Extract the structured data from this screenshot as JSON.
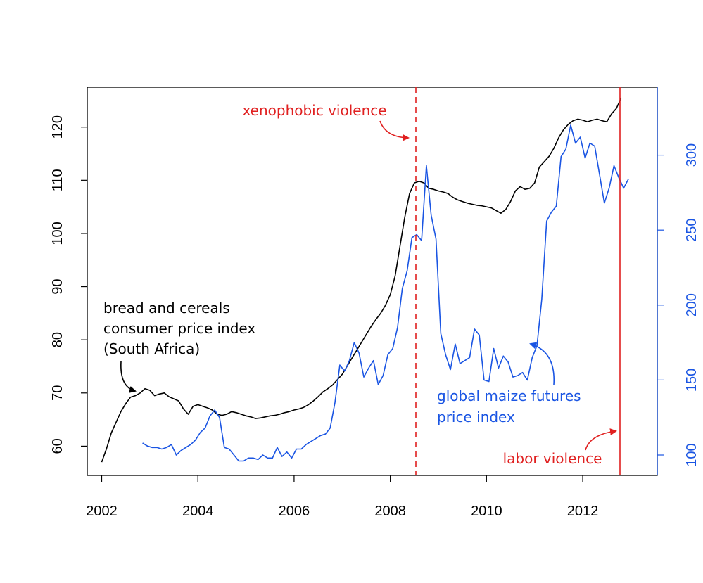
{
  "chart_data": {
    "type": "line",
    "title": "",
    "x_axis": {
      "range": [
        2001.7,
        2013.55
      ],
      "ticks": [
        2002,
        2004,
        2006,
        2008,
        2010,
        2012
      ],
      "tick_labels": [
        "2002",
        "2004",
        "2006",
        "2008",
        "2010",
        "2012"
      ]
    },
    "y_axis_left": {
      "range": [
        54.5,
        127.5
      ],
      "ticks": [
        60,
        70,
        80,
        90,
        100,
        110,
        120
      ],
      "tick_labels": [
        "60",
        "70",
        "80",
        "90",
        "100",
        "110",
        "120"
      ],
      "color": "#000000"
    },
    "y_axis_right": {
      "range": [
        86.4,
        345.3
      ],
      "ticks": [
        100,
        150,
        200,
        250,
        300
      ],
      "tick_labels": [
        "100",
        "150",
        "200",
        "250",
        "300"
      ],
      "color": "#1a55e3"
    },
    "series": [
      {
        "name": "bread and cereals consumer price index (South Africa)",
        "axis": "left",
        "color": "#000000",
        "x": [
          2002.0,
          2002.1,
          2002.2,
          2002.3,
          2002.4,
          2002.5,
          2002.6,
          2002.7,
          2002.8,
          2002.9,
          2003.0,
          2003.1,
          2003.2,
          2003.3,
          2003.4,
          2003.5,
          2003.6,
          2003.7,
          2003.8,
          2003.9,
          2004.0,
          2004.1,
          2004.2,
          2004.3,
          2004.4,
          2004.5,
          2004.6,
          2004.7,
          2004.8,
          2004.9,
          2005.0,
          2005.1,
          2005.2,
          2005.3,
          2005.4,
          2005.5,
          2005.6,
          2005.7,
          2005.8,
          2005.9,
          2006.0,
          2006.1,
          2006.2,
          2006.3,
          2006.4,
          2006.5,
          2006.6,
          2006.7,
          2006.8,
          2006.9,
          2007.0,
          2007.1,
          2007.2,
          2007.3,
          2007.4,
          2007.5,
          2007.6,
          2007.7,
          2007.8,
          2007.9,
          2008.0,
          2008.1,
          2008.2,
          2008.3,
          2008.4,
          2008.5,
          2008.6,
          2008.7,
          2008.8,
          2008.9,
          2009.0,
          2009.1,
          2009.2,
          2009.3,
          2009.4,
          2009.5,
          2009.6,
          2009.7,
          2009.8,
          2009.9,
          2010.0,
          2010.1,
          2010.2,
          2010.3,
          2010.4,
          2010.5,
          2010.6,
          2010.7,
          2010.8,
          2010.9,
          2011.0,
          2011.1,
          2011.2,
          2011.3,
          2011.4,
          2011.5,
          2011.6,
          2011.7,
          2011.8,
          2011.9,
          2012.0,
          2012.1,
          2012.2,
          2012.3,
          2012.4,
          2012.5,
          2012.6,
          2012.7,
          2012.8
        ],
        "values": [
          57.0,
          59.5,
          62.5,
          64.5,
          66.5,
          68.0,
          69.2,
          69.5,
          70.0,
          70.8,
          70.5,
          69.5,
          69.8,
          70.0,
          69.3,
          68.9,
          68.5,
          67.0,
          66.0,
          67.5,
          67.8,
          67.5,
          67.2,
          66.8,
          66.0,
          65.8,
          66.0,
          66.5,
          66.3,
          66.0,
          65.7,
          65.5,
          65.2,
          65.3,
          65.5,
          65.7,
          65.8,
          66.0,
          66.3,
          66.5,
          66.8,
          67.0,
          67.3,
          67.8,
          68.5,
          69.3,
          70.2,
          70.8,
          71.5,
          72.5,
          73.5,
          75.0,
          76.5,
          78.0,
          79.5,
          81.0,
          82.5,
          83.8,
          85.0,
          86.5,
          88.5,
          92.0,
          97.5,
          103.0,
          107.5,
          109.5,
          109.8,
          109.5,
          108.5,
          108.3,
          108.0,
          107.8,
          107.5,
          106.8,
          106.3,
          106.0,
          105.7,
          105.5,
          105.3,
          105.2,
          105.0,
          104.8,
          104.3,
          103.8,
          104.5,
          106.0,
          108.0,
          108.8,
          108.3,
          108.5,
          109.5,
          112.5,
          113.5,
          114.5,
          116.0,
          118.0,
          119.5,
          120.5,
          121.2,
          121.5,
          121.3,
          121.0,
          121.3,
          121.5,
          121.2,
          121.0,
          122.5,
          123.5,
          125.5
        ]
      },
      {
        "name": "global maize futures price index",
        "axis": "right",
        "color": "#1a55e3",
        "x": [
          2002.85,
          2002.95,
          2003.05,
          2003.15,
          2003.25,
          2003.35,
          2003.45,
          2003.55,
          2003.65,
          2003.75,
          2003.85,
          2003.95,
          2004.05,
          2004.15,
          2004.25,
          2004.35,
          2004.45,
          2004.55,
          2004.65,
          2004.75,
          2004.85,
          2004.95,
          2005.05,
          2005.15,
          2005.25,
          2005.35,
          2005.45,
          2005.55,
          2005.65,
          2005.75,
          2005.85,
          2005.95,
          2006.05,
          2006.15,
          2006.25,
          2006.35,
          2006.45,
          2006.55,
          2006.65,
          2006.75,
          2006.85,
          2006.95,
          2007.05,
          2007.15,
          2007.25,
          2007.35,
          2007.45,
          2007.55,
          2007.65,
          2007.75,
          2007.85,
          2007.95,
          2008.05,
          2008.15,
          2008.25,
          2008.35,
          2008.45,
          2008.55,
          2008.65,
          2008.75,
          2008.85,
          2008.95,
          2009.05,
          2009.15,
          2009.25,
          2009.35,
          2009.45,
          2009.55,
          2009.65,
          2009.75,
          2009.85,
          2009.95,
          2010.05,
          2010.15,
          2010.25,
          2010.35,
          2010.45,
          2010.55,
          2010.65,
          2010.75,
          2010.85,
          2010.95,
          2011.05,
          2011.15,
          2011.25,
          2011.35,
          2011.45,
          2011.55,
          2011.65,
          2011.75,
          2011.85,
          2011.95,
          2012.05,
          2012.15,
          2012.25,
          2012.35,
          2012.45,
          2012.55,
          2012.65,
          2012.75,
          2012.85,
          2012.95
        ],
        "values": [
          108,
          106,
          105,
          105,
          104,
          105,
          107,
          100,
          103,
          105,
          107,
          110,
          115,
          118,
          126,
          130,
          125,
          105,
          104,
          100,
          96,
          96,
          98,
          98,
          97,
          100,
          98,
          98,
          105,
          99,
          102,
          98,
          104,
          104,
          107,
          109,
          111,
          113,
          114,
          118,
          135,
          160,
          156,
          163,
          175,
          168,
          152,
          158,
          163,
          147,
          153,
          167,
          171,
          185,
          211,
          223,
          245,
          247,
          243,
          293,
          260,
          244,
          181,
          167,
          157,
          174,
          161,
          163,
          165,
          184,
          180,
          150,
          149,
          171,
          158,
          166,
          162,
          152,
          153,
          155,
          150,
          165,
          173,
          204,
          256,
          262,
          266,
          299,
          304,
          320,
          308,
          312,
          298,
          308,
          306,
          287,
          268,
          278,
          293,
          285,
          278,
          284
        ]
      }
    ],
    "annotations": [
      {
        "id": "xenophobic",
        "text": "xenophobic violence",
        "x": 2008.35,
        "line_style": "dashed",
        "color": "#e02020"
      },
      {
        "id": "labor",
        "text": "labor violence",
        "x": 2012.6,
        "line_style": "solid",
        "color": "#e02020"
      }
    ],
    "series_labels": {
      "cpi_lines": [
        "bread and cereals",
        "consumer price index",
        "(South Africa)"
      ],
      "maize_lines": [
        "global maize futures",
        "price index"
      ]
    }
  }
}
